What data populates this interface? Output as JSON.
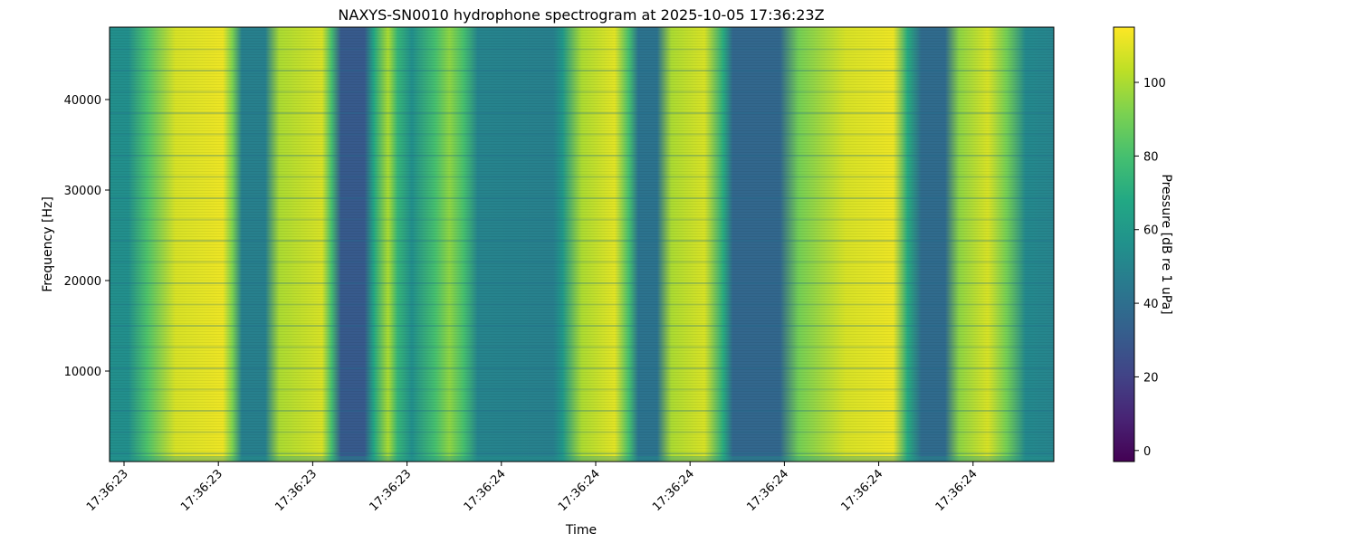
{
  "chart_data": {
    "type": "heatmap",
    "title": "NAXYS-SN0010 hydrophone spectrogram at 2025-10-05 17:36:23Z",
    "xlabel": "Time",
    "ylabel": "Frequency [Hz]",
    "colorbar_label": "Pressure [dB re 1 uPa]",
    "colormap": "viridis",
    "ylim": [
      0,
      48000
    ],
    "y_ticks": [
      10000,
      20000,
      30000,
      40000
    ],
    "x_tick_labels": [
      "17:36:23",
      "17:36:23",
      "17:36:23",
      "17:36:23",
      "17:36:24",
      "17:36:24",
      "17:36:24",
      "17:36:24",
      "17:36:24",
      "17:36:24"
    ],
    "color_range": [
      -3,
      115
    ],
    "colorbar_ticks": [
      0,
      20,
      40,
      60,
      80,
      100
    ],
    "intensity_by_time": [
      {
        "t": 0.0,
        "db": 55
      },
      {
        "t": 0.02,
        "db": 55
      },
      {
        "t": 0.04,
        "db": 82
      },
      {
        "t": 0.07,
        "db": 108
      },
      {
        "t": 0.12,
        "db": 112
      },
      {
        "t": 0.13,
        "db": 92
      },
      {
        "t": 0.14,
        "db": 48
      },
      {
        "t": 0.165,
        "db": 48
      },
      {
        "t": 0.18,
        "db": 100
      },
      {
        "t": 0.225,
        "db": 108
      },
      {
        "t": 0.235,
        "db": 80
      },
      {
        "t": 0.245,
        "db": 30
      },
      {
        "t": 0.27,
        "db": 30
      },
      {
        "t": 0.28,
        "db": 68
      },
      {
        "t": 0.295,
        "db": 100
      },
      {
        "t": 0.305,
        "db": 75
      },
      {
        "t": 0.32,
        "db": 55
      },
      {
        "t": 0.345,
        "db": 80
      },
      {
        "t": 0.36,
        "db": 95
      },
      {
        "t": 0.375,
        "db": 80
      },
      {
        "t": 0.39,
        "db": 50
      },
      {
        "t": 0.47,
        "db": 48
      },
      {
        "t": 0.48,
        "db": 60
      },
      {
        "t": 0.5,
        "db": 100
      },
      {
        "t": 0.535,
        "db": 110
      },
      {
        "t": 0.55,
        "db": 80
      },
      {
        "t": 0.56,
        "db": 42
      },
      {
        "t": 0.58,
        "db": 42
      },
      {
        "t": 0.595,
        "db": 100
      },
      {
        "t": 0.63,
        "db": 108
      },
      {
        "t": 0.65,
        "db": 70
      },
      {
        "t": 0.66,
        "db": 36
      },
      {
        "t": 0.71,
        "db": 36
      },
      {
        "t": 0.73,
        "db": 90
      },
      {
        "t": 0.78,
        "db": 108
      },
      {
        "t": 0.83,
        "db": 112
      },
      {
        "t": 0.845,
        "db": 70
      },
      {
        "t": 0.86,
        "db": 38
      },
      {
        "t": 0.885,
        "db": 38
      },
      {
        "t": 0.9,
        "db": 95
      },
      {
        "t": 0.93,
        "db": 108
      },
      {
        "t": 0.95,
        "db": 90
      },
      {
        "t": 0.97,
        "db": 52
      },
      {
        "t": 1.0,
        "db": 50
      }
    ]
  }
}
